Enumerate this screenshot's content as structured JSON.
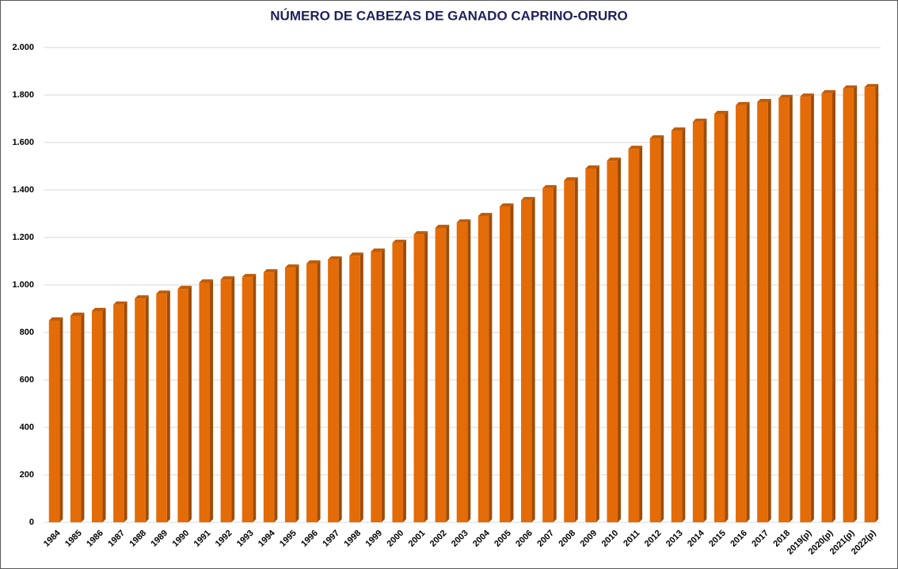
{
  "chart_data": {
    "type": "bar",
    "title": "NÚMERO DE CABEZAS DE GANADO CAPRINO-ORURO",
    "categories": [
      "1984",
      "1985",
      "1986",
      "1987",
      "1988",
      "1989",
      "1990",
      "1991",
      "1992",
      "1993",
      "1994",
      "1995",
      "1996",
      "1997",
      "1998",
      "1999",
      "2000",
      "2001",
      "2002",
      "2003",
      "2004",
      "2005",
      "2006",
      "2007",
      "2008",
      "2009",
      "2010",
      "2011",
      "2012",
      "2013",
      "2014",
      "2015",
      "2016",
      "2017",
      "2018",
      "2019(p)",
      "2020(p)",
      "2021(p)",
      "2022(p)"
    ],
    "values": [
      850,
      870,
      890,
      917,
      943,
      963,
      983,
      1010,
      1023,
      1033,
      1053,
      1073,
      1090,
      1107,
      1123,
      1140,
      1177,
      1213,
      1240,
      1263,
      1290,
      1330,
      1357,
      1407,
      1440,
      1490,
      1523,
      1573,
      1617,
      1650,
      1687,
      1720,
      1757,
      1770,
      1787,
      1793,
      1807,
      1827,
      1833
    ],
    "color": "#e36c09",
    "ylim": [
      0,
      2000
    ],
    "yticks": [
      0,
      200,
      400,
      600,
      800,
      {
        "value": 1000,
        "label": "1.000"
      },
      {
        "value": 1200,
        "label": "1.200"
      },
      {
        "value": 1400,
        "label": "1.400"
      },
      {
        "value": 1600,
        "label": "1.600"
      },
      {
        "value": 1800,
        "label": "1.800"
      },
      {
        "value": 2000,
        "label": "2.000"
      }
    ],
    "grid": true
  }
}
